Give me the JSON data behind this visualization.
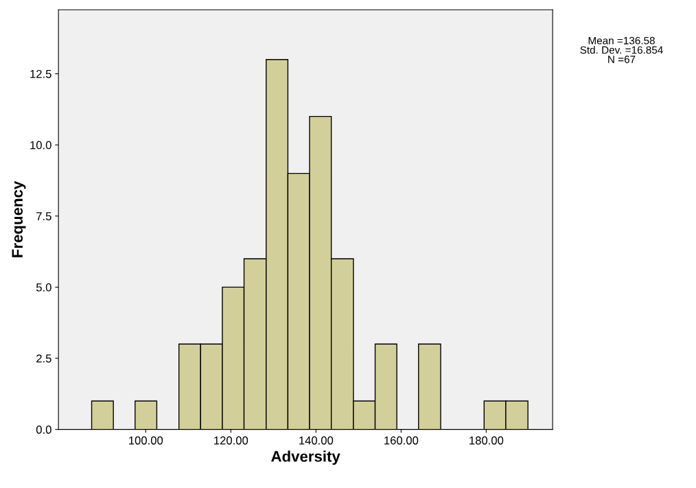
{
  "chart_data": {
    "type": "histogram",
    "xlabel": "Adversity",
    "ylabel": "Frequency",
    "bins": [
      87.3,
      92.4,
      97.5,
      102.6,
      107.8,
      112.9,
      118.0,
      123.1,
      128.3,
      133.4,
      138.5,
      143.6,
      148.8,
      153.9,
      159.0,
      164.1,
      169.3,
      179.5,
      184.6,
      189.8
    ],
    "values": [
      1,
      0,
      1,
      0,
      3,
      3,
      5,
      6,
      13,
      9,
      11,
      6,
      1,
      3,
      0,
      3,
      0,
      1,
      1
    ],
    "color": "#d3cf9a",
    "xlim": [
      79.5,
      195.6
    ],
    "ylim": [
      0,
      14.75
    ],
    "xticks": [
      {
        "value": 100,
        "label": "100.00"
      },
      {
        "value": 120,
        "label": "120.00"
      },
      {
        "value": 140,
        "label": "140.00"
      },
      {
        "value": 160,
        "label": "160.00"
      },
      {
        "value": 180,
        "label": "180.00"
      }
    ],
    "yticks": [
      {
        "value": 0,
        "label": "0.0"
      },
      {
        "value": 2.5,
        "label": "2.5"
      },
      {
        "value": 5,
        "label": "5.0"
      },
      {
        "value": 7.5,
        "label": "7.5"
      },
      {
        "value": 10,
        "label": "10.0"
      },
      {
        "value": 12.5,
        "label": "12.5"
      }
    ],
    "annotations": [
      "Mean =136.58\nStd. Dev. =16.854\nN =67"
    ],
    "grid": false
  }
}
